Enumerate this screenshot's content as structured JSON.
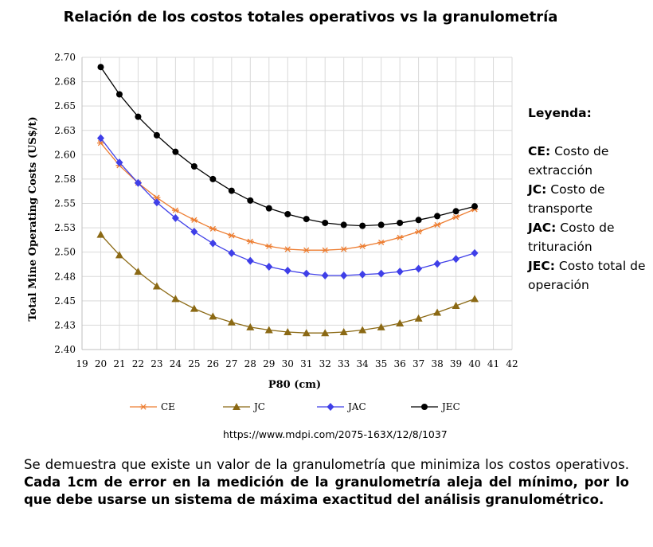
{
  "title": "Relación de los costos totales operativos vs la granulometría",
  "legend_panel": {
    "heading": "Leyenda:",
    "items": [
      {
        "code": "CE:",
        "text": "Costo de extracción"
      },
      {
        "code": "JC:",
        "text": "Costo de transporte"
      },
      {
        "code": "JAC:",
        "text": "Costo de trituración"
      },
      {
        "code": "JEC:",
        "text": "Costo total de operación"
      }
    ]
  },
  "source": "https://www.mdpi.com/2075-163X/12/8/1037",
  "caption": {
    "normal": "Se demuestra que existe un valor de la granulometría que minimiza los costos operativos. ",
    "bold": "Cada 1cm de error en la medición de la granulometría aleja del mínimo, por lo que debe usarse un sistema de máxima exactitud del análisis granulométrico."
  },
  "chart_data": {
    "type": "line",
    "xlabel": "P80 (cm)",
    "ylabel": "Total Mine Operating Costs (US$/t)",
    "xlim": [
      19,
      42
    ],
    "ylim": [
      2.4,
      2.7
    ],
    "x_ticks": [
      "19",
      "20",
      "21",
      "22",
      "23",
      "24",
      "25",
      "26",
      "27",
      "28",
      "29",
      "30",
      "31",
      "32",
      "33",
      "34",
      "35",
      "36",
      "37",
      "38",
      "39",
      "40",
      "41",
      "42"
    ],
    "y_ticks": [
      "2.40",
      "2.43",
      "2.45",
      "2.48",
      "2.50",
      "2.53",
      "2.55",
      "2.58",
      "2.60",
      "2.63",
      "2.65",
      "2.68",
      "2.70"
    ],
    "grid": true,
    "legend_position": "bottom",
    "x": [
      20,
      21,
      22,
      23,
      24,
      25,
      26,
      27,
      28,
      29,
      30,
      31,
      32,
      33,
      34,
      35,
      36,
      37,
      38,
      39,
      40
    ],
    "series": [
      {
        "name": "CE",
        "color": "#ED7D31",
        "marker": "star",
        "values": [
          2.612,
          2.589,
          2.571,
          2.556,
          2.543,
          2.533,
          2.524,
          2.517,
          2.511,
          2.506,
          2.503,
          2.502,
          2.502,
          2.503,
          2.506,
          2.51,
          2.515,
          2.521,
          2.528,
          2.536,
          2.544
        ]
      },
      {
        "name": "JC",
        "color": "#8B6914",
        "marker": "triangle",
        "values": [
          2.518,
          2.497,
          2.48,
          2.465,
          2.452,
          2.442,
          2.434,
          2.428,
          2.423,
          2.42,
          2.418,
          2.417,
          2.417,
          2.418,
          2.42,
          2.423,
          2.427,
          2.432,
          2.438,
          2.445,
          2.452
        ]
      },
      {
        "name": "JAC",
        "color": "#3F3FE8",
        "marker": "diamond",
        "values": [
          2.617,
          2.592,
          2.571,
          2.551,
          2.535,
          2.521,
          2.509,
          2.499,
          2.491,
          2.485,
          2.481,
          2.478,
          2.476,
          2.476,
          2.477,
          2.478,
          2.48,
          2.483,
          2.488,
          2.493,
          2.499
        ]
      },
      {
        "name": "JEC",
        "color": "#000000",
        "marker": "circle",
        "values": [
          2.69,
          2.662,
          2.639,
          2.62,
          2.603,
          2.588,
          2.575,
          2.563,
          2.553,
          2.545,
          2.539,
          2.534,
          2.53,
          2.528,
          2.527,
          2.528,
          2.53,
          2.533,
          2.537,
          2.542,
          2.547
        ]
      }
    ]
  }
}
